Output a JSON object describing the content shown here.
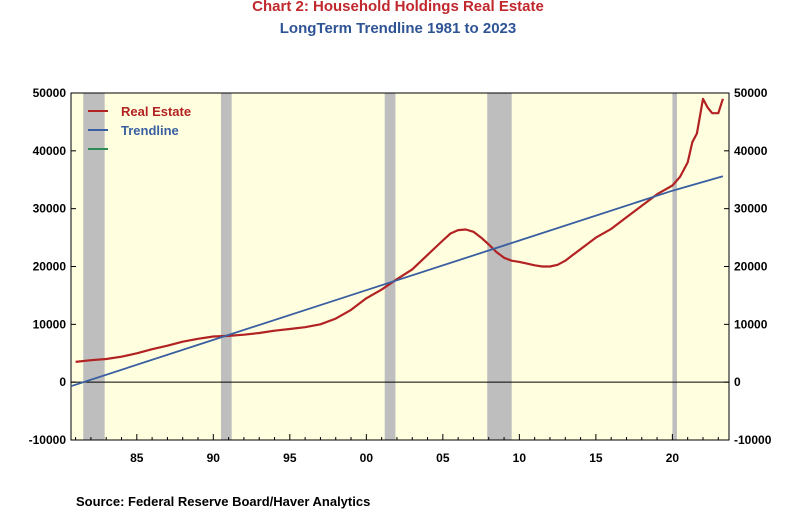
{
  "chart_data": {
    "type": "line",
    "title": "Chart 2:  Household Holdings Real Estate",
    "subtitle": "LongTerm Trendline 1981 to 2023",
    "source": "Source:  Federal Reserve Board/Haver Analytics",
    "xlim": [
      1980.7,
      2023.7
    ],
    "ylim": [
      -10000,
      50000
    ],
    "y_ticks": [
      -10000,
      0,
      10000,
      20000,
      30000,
      40000,
      50000
    ],
    "y_tick_labels": [
      "-10000",
      "0",
      "10000",
      "20000",
      "30000",
      "40000",
      "50000"
    ],
    "x_ticks": [
      1985,
      1990,
      1995,
      2000,
      2005,
      2010,
      2015,
      2020
    ],
    "x_tick_labels": [
      "85",
      "90",
      "95",
      "00",
      "05",
      "10",
      "15",
      "20"
    ],
    "grid": false,
    "legend_placement": "top-left",
    "plot_background": "#FFFFE0",
    "recession_color": "#BEBEBE",
    "recessions": [
      [
        1981.5,
        1982.9
      ],
      [
        1990.5,
        1991.2
      ],
      [
        2001.2,
        2001.9
      ],
      [
        2007.9,
        2009.5
      ],
      [
        2020.0,
        2020.3
      ]
    ],
    "series": [
      {
        "name": "Real Estate",
        "color": "#B22222",
        "x": [
          1981.0,
          1982.0,
          1983.0,
          1984.0,
          1985.0,
          1986.0,
          1987.0,
          1988.0,
          1989.0,
          1990.0,
          1991.0,
          1992.0,
          1993.0,
          1994.0,
          1995.0,
          1996.0,
          1997.0,
          1998.0,
          1999.0,
          2000.0,
          2001.0,
          2002.0,
          2003.0,
          2004.0,
          2005.0,
          2005.5,
          2006.0,
          2006.5,
          2007.0,
          2007.5,
          2008.0,
          2008.5,
          2009.0,
          2009.5,
          2010.0,
          2010.5,
          2011.0,
          2011.5,
          2012.0,
          2012.5,
          2013.0,
          2013.5,
          2014.0,
          2015.0,
          2016.0,
          2017.0,
          2018.0,
          2019.0,
          2020.0,
          2020.5,
          2021.0,
          2021.3,
          2021.6,
          2022.0,
          2022.3,
          2022.6,
          2023.0,
          2023.3
        ],
        "values": [
          3500,
          3800,
          4000,
          4400,
          5000,
          5700,
          6300,
          7000,
          7500,
          7900,
          8000,
          8200,
          8500,
          8900,
          9200,
          9500,
          10000,
          11000,
          12500,
          14500,
          16000,
          17800,
          19500,
          22000,
          24500,
          25700,
          26300,
          26400,
          26000,
          25000,
          23800,
          22500,
          21500,
          21000,
          20800,
          20500,
          20200,
          20000,
          20000,
          20300,
          21000,
          22000,
          23000,
          25000,
          26500,
          28500,
          30500,
          32500,
          34000,
          35500,
          38000,
          41500,
          43000,
          49000,
          47500,
          46500,
          46500,
          49000
        ]
      },
      {
        "name": "Trendline",
        "color": "#3A5FA0",
        "x": [
          1980.7,
          1990.0,
          2000.0,
          2010.0,
          2020.0,
          2023.3
        ],
        "values": [
          -700,
          7300,
          15900,
          24500,
          33100,
          35600
        ]
      },
      {
        "name": "",
        "color": "#2E8B57",
        "x": [],
        "values": []
      }
    ]
  }
}
